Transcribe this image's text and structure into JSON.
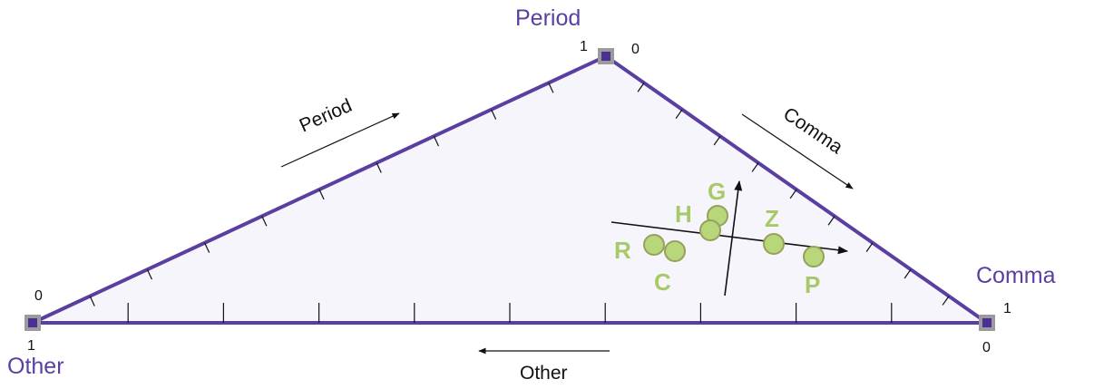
{
  "vertices": {
    "period": {
      "label": "Period",
      "end_near_other": "1",
      "end_near_comma": "0"
    },
    "comma": {
      "label": "Comma",
      "end_top": "1",
      "end_bottom": "0"
    },
    "other": {
      "label": "Other",
      "end_top": "0",
      "end_bottom": "1"
    }
  },
  "edge_labels": {
    "period": "Period",
    "comma": "Comma",
    "other": "Other"
  },
  "points": [
    {
      "label": "G"
    },
    {
      "label": "H"
    },
    {
      "label": "Z"
    },
    {
      "label": "R"
    },
    {
      "label": "C"
    },
    {
      "label": "P"
    }
  ],
  "colors": {
    "triangle_stroke": "#5b3fa0",
    "triangle_fill": "#f6f5fb",
    "vertex_label": "#5b3fa0",
    "point_fill": "#b7d77a",
    "point_stroke": "#97a05a",
    "point_label": "#a8c968"
  }
}
